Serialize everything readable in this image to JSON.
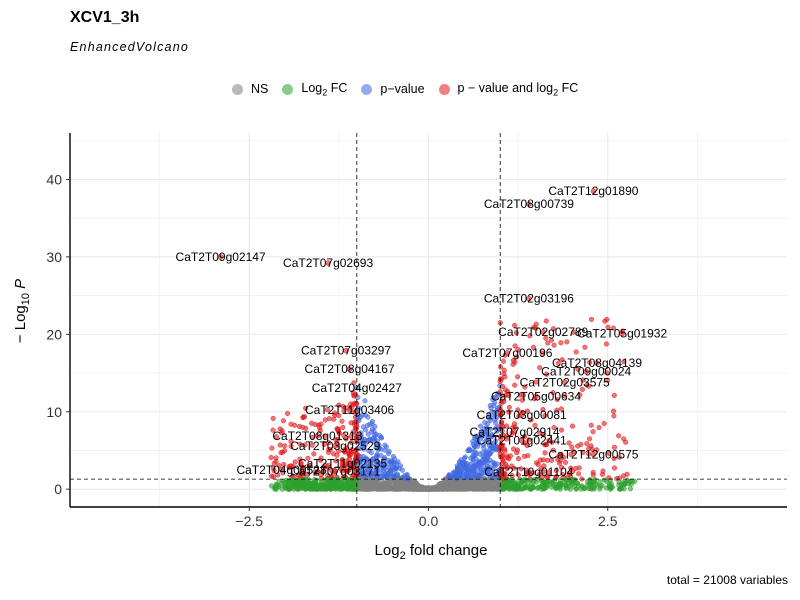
{
  "chart_data": {
    "type": "scatter",
    "title": "XCV1_3h",
    "subtitle": "EnhancedVolcano",
    "caption": "total = 21008 variables",
    "xlabel": "Log2 fold change",
    "ylabel": "-Log10 P",
    "xlim": [
      -5,
      5
    ],
    "ylim": [
      -2.3,
      46
    ],
    "x_ticks": [
      -2.5,
      0.0,
      2.5
    ],
    "x_tick_labels": [
      "-2.5",
      "0.0",
      "2.5"
    ],
    "y_ticks": [
      0,
      10,
      20,
      30,
      40
    ],
    "y_tick_labels": [
      "0",
      "10",
      "20",
      "30",
      "40"
    ],
    "fc_cutoff": 1,
    "p_cutoff_log10": 1.3,
    "grid": true,
    "legend_position": "top",
    "legend": [
      {
        "key": "ns",
        "label": "NS",
        "color": "#808080"
      },
      {
        "key": "fc",
        "label": "Log2 FC",
        "color": "#2ea02e"
      },
      {
        "key": "p",
        "label": "p-value",
        "color": "#4169e1"
      },
      {
        "key": "both",
        "label": "p - value and log2 FC",
        "color": "#e31a1c"
      }
    ],
    "labeled_genes": [
      {
        "name": "CaT2T12g01890",
        "x": 2.3,
        "y": 38.5
      },
      {
        "name": "CaT2T08g00739",
        "x": 1.4,
        "y": 36.8
      },
      {
        "name": "CaT2T09g02147",
        "x": -2.9,
        "y": 30.0
      },
      {
        "name": "CaT2T07g02693",
        "x": -1.4,
        "y": 29.2
      },
      {
        "name": "CaT2T02g03196",
        "x": 1.4,
        "y": 24.6
      },
      {
        "name": "CaT2T05g01932",
        "x": 2.7,
        "y": 20.1
      },
      {
        "name": "CaT2T02g02789",
        "x": 1.6,
        "y": 20.3
      },
      {
        "name": "CaT2T07g03297",
        "x": -1.15,
        "y": 17.9
      },
      {
        "name": "CaT2T07g00196",
        "x": 1.1,
        "y": 17.6
      },
      {
        "name": "CaT2T08g04139",
        "x": 2.35,
        "y": 16.3
      },
      {
        "name": "CaT2T08g04167",
        "x": -1.1,
        "y": 15.5
      },
      {
        "name": "CaT2T09g00024",
        "x": 2.2,
        "y": 15.2
      },
      {
        "name": "CaT2T02g03575",
        "x": 1.9,
        "y": 13.8
      },
      {
        "name": "CaT2T04g02427",
        "x": -1.0,
        "y": 13.1
      },
      {
        "name": "CaT2T05g00634",
        "x": 1.5,
        "y": 12.0
      },
      {
        "name": "CaT2T11g03406",
        "x": -1.1,
        "y": 10.2
      },
      {
        "name": "CaT2T03g00081",
        "x": 1.3,
        "y": 9.6
      },
      {
        "name": "CaT2T07g02914",
        "x": 1.2,
        "y": 7.4
      },
      {
        "name": "CaT2T08g01313",
        "x": -1.55,
        "y": 6.9
      },
      {
        "name": "CaT2T01g02441",
        "x": 1.3,
        "y": 6.3
      },
      {
        "name": "CaT2T03g02529",
        "x": -1.3,
        "y": 5.6
      },
      {
        "name": "CaT2T12g00575",
        "x": 2.3,
        "y": 4.5
      },
      {
        "name": "CaT2T11g02135",
        "x": -1.2,
        "y": 3.3
      },
      {
        "name": "CaT2T04g00528",
        "x": -2.05,
        "y": 2.5
      },
      {
        "name": "CaT2T07g03171",
        "x": -1.3,
        "y": 2.3
      },
      {
        "name": "CaT2T10g01104",
        "x": 1.4,
        "y": 2.2
      }
    ]
  }
}
